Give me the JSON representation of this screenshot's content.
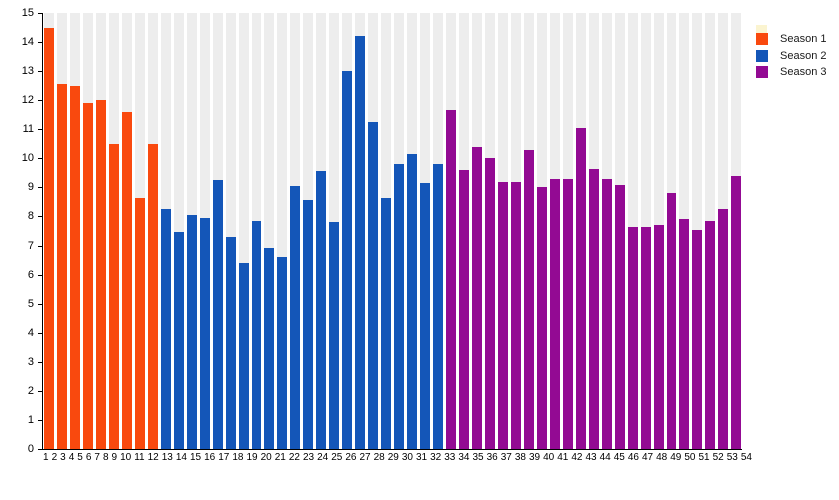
{
  "chart_data": {
    "type": "bar",
    "title": "",
    "xlabel": "",
    "ylabel": "",
    "ylim": [
      0,
      15
    ],
    "y_ticks": [
      0,
      1,
      2,
      3,
      4,
      5,
      6,
      7,
      8,
      9,
      10,
      11,
      12,
      13,
      14,
      15
    ],
    "categories": [
      1,
      2,
      3,
      4,
      5,
      6,
      7,
      8,
      9,
      10,
      11,
      12,
      13,
      14,
      15,
      16,
      17,
      18,
      19,
      20,
      21,
      22,
      23,
      24,
      25,
      26,
      27,
      28,
      29,
      30,
      31,
      32,
      33,
      34,
      35,
      36,
      37,
      38,
      39,
      40,
      41,
      42,
      43,
      44,
      45,
      46,
      47,
      48,
      49,
      50,
      51,
      52,
      53,
      54
    ],
    "grid": "striped-columns",
    "legend_position": "top-right",
    "series": [
      {
        "name": "Season 1",
        "color": "#F9490E",
        "values": [
          14.5,
          12.55,
          12.5,
          11.9,
          12.0,
          10.5,
          11.6,
          8.65,
          10.5
        ]
      },
      {
        "name": "Season 2",
        "color": "#1456B8",
        "values": [
          8.25,
          7.45,
          8.05,
          7.95,
          9.25,
          7.3,
          6.4,
          7.85,
          6.9,
          6.6,
          9.05,
          8.55,
          9.55,
          7.8,
          13.0,
          14.2,
          11.25,
          8.65,
          9.8,
          10.15,
          9.15,
          9.8
        ]
      },
      {
        "name": "Season 3",
        "color": "#930A93",
        "values": [
          11.65,
          9.6,
          10.4,
          10.0,
          9.2,
          9.2,
          10.3,
          9.0,
          9.3,
          9.3,
          11.05,
          9.65,
          9.3,
          9.1,
          7.65,
          7.65,
          7.7,
          8.8,
          7.9,
          7.55,
          7.85,
          8.25,
          9.4
        ]
      }
    ]
  },
  "legend": {
    "items": [
      {
        "label": "Season 1",
        "color": "#F9490E"
      },
      {
        "label": "Season 2",
        "color": "#1456B8"
      },
      {
        "label": "Season 3",
        "color": "#930A93"
      }
    ]
  },
  "colors": {
    "column_stripe": "#EDEDED",
    "plot_gap": "#FFFFFF",
    "axis": "#000000",
    "tick_text": "#000000",
    "legend_highlight": "#FBF4D0"
  }
}
